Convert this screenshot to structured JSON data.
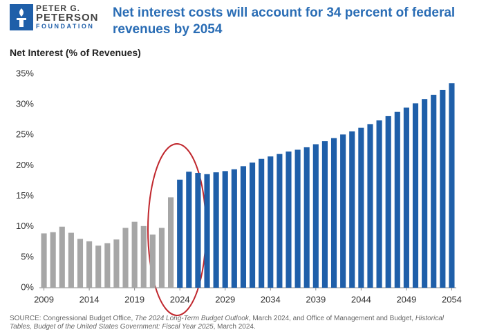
{
  "header": {
    "logo": [
      "PETER G.",
      "PETERSON",
      "FOUNDATION"
    ]
  },
  "chart_data": {
    "type": "bar",
    "title": "Net interest costs will account for 34 percent of federal revenues by 2054",
    "y_axis_label": "Net Interest (% of Revenues)",
    "categories": [
      "2009",
      null,
      null,
      null,
      null,
      "2014",
      null,
      null,
      null,
      null,
      "2019",
      null,
      null,
      null,
      null,
      "2024",
      null,
      null,
      null,
      null,
      "2029",
      null,
      null,
      null,
      null,
      "2034",
      null,
      null,
      null,
      null,
      "2039",
      null,
      null,
      null,
      null,
      "2044",
      null,
      null,
      null,
      null,
      "2049",
      null,
      null,
      null,
      null,
      "2054"
    ],
    "values": [
      8.9,
      9.1,
      10.0,
      9.0,
      8.0,
      7.6,
      6.9,
      7.3,
      7.9,
      9.8,
      10.8,
      10.1,
      8.7,
      9.8,
      14.8,
      17.7,
      19.0,
      18.8,
      18.6,
      18.9,
      19.1,
      19.4,
      19.9,
      20.5,
      21.1,
      21.5,
      21.9,
      22.3,
      22.6,
      23.0,
      23.5,
      24.0,
      24.5,
      25.1,
      25.6,
      26.2,
      26.8,
      27.4,
      28.1,
      28.8,
      29.5,
      30.2,
      30.9,
      31.6,
      32.4,
      33.5
    ],
    "colors": [
      "#a6a6a6",
      "#a6a6a6",
      "#a6a6a6",
      "#a6a6a6",
      "#a6a6a6",
      "#a6a6a6",
      "#a6a6a6",
      "#a6a6a6",
      "#a6a6a6",
      "#a6a6a6",
      "#a6a6a6",
      "#a6a6a6",
      "#a6a6a6",
      "#a6a6a6",
      "#a6a6a6",
      "#1f5fa9",
      "#1f5fa9",
      "#1f5fa9",
      "#1f5fa9",
      "#1f5fa9",
      "#1f5fa9",
      "#1f5fa9",
      "#1f5fa9",
      "#1f5fa9",
      "#1f5fa9",
      "#1f5fa9",
      "#1f5fa9",
      "#1f5fa9",
      "#1f5fa9",
      "#1f5fa9",
      "#1f5fa9",
      "#1f5fa9",
      "#1f5fa9",
      "#1f5fa9",
      "#1f5fa9",
      "#1f5fa9",
      "#1f5fa9",
      "#1f5fa9",
      "#1f5fa9",
      "#1f5fa9",
      "#1f5fa9",
      "#1f5fa9",
      "#1f5fa9",
      "#1f5fa9",
      "#1f5fa9",
      "#1f5fa9"
    ],
    "ylim": [
      0,
      35
    ],
    "yticks": [
      {
        "value": 0,
        "label": "0%"
      },
      {
        "value": 5,
        "label": "5%"
      },
      {
        "value": 10,
        "label": "10%"
      },
      {
        "value": 15,
        "label": "15%"
      },
      {
        "value": 20,
        "label": "20%"
      },
      {
        "value": 25,
        "label": "25%"
      },
      {
        "value": 30,
        "label": "30%"
      },
      {
        "value": 35,
        "label": "35%"
      }
    ],
    "grid": false
  },
  "source": [
    "SOURCE: Congressional Budget Office, ",
    "The 2024 Long-Term Budget Outlook",
    ", March 2024, and Office of Management and Budget, ",
    "Historical Tables, Budget of the United States Government: Fiscal Year 2025",
    ", March 2024."
  ]
}
